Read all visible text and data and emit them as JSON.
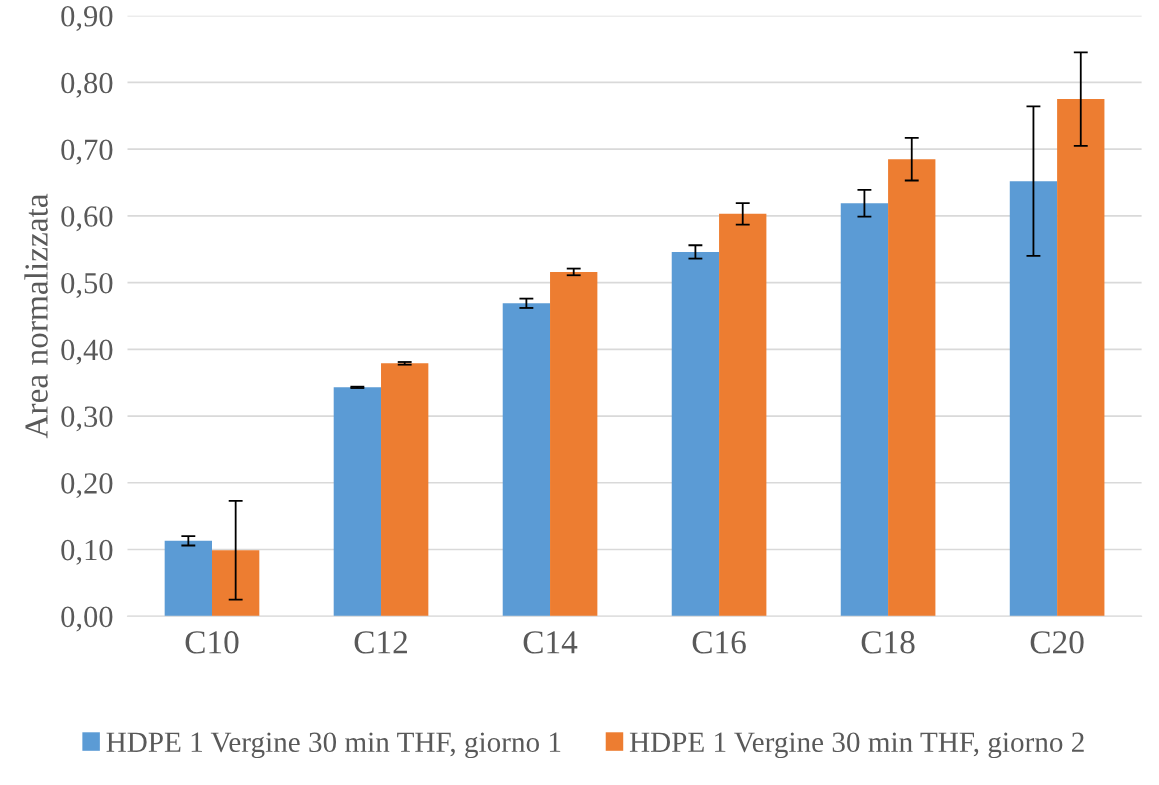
{
  "chart_data": {
    "type": "bar",
    "ylabel": "Area normalizzata",
    "categories": [
      "C10",
      "C12",
      "C14",
      "C16",
      "C18",
      "C20"
    ],
    "series": [
      {
        "name": "HDPE 1 Vergine 30 min THF, giorno 1",
        "color": "#5b9bd5",
        "values": [
          0.113,
          0.343,
          0.469,
          0.546,
          0.619,
          0.652
        ],
        "errors": [
          0.007,
          0.001,
          0.007,
          0.01,
          0.02,
          0.112
        ]
      },
      {
        "name": "HDPE 1 Vergine 30 min THF, giorno 2",
        "color": "#ed7d31",
        "values": [
          0.099,
          0.379,
          0.516,
          0.603,
          0.685,
          0.775
        ],
        "errors": [
          0.074,
          0.002,
          0.005,
          0.016,
          0.032,
          0.07
        ]
      }
    ],
    "ylim": [
      0,
      0.9
    ],
    "yticks": [
      {
        "value": 0,
        "label": "0,00"
      },
      {
        "value": 0.1,
        "label": "0,10"
      },
      {
        "value": 0.2,
        "label": "0,20"
      },
      {
        "value": 0.3,
        "label": "0,30"
      },
      {
        "value": 0.4,
        "label": "0,40"
      },
      {
        "value": 0.5,
        "label": "0,50"
      },
      {
        "value": 0.6,
        "label": "0,60"
      },
      {
        "value": 0.7,
        "label": "0,70"
      },
      {
        "value": 0.8,
        "label": "0,80"
      },
      {
        "value": 0.9,
        "label": "0,90"
      }
    ],
    "grid": "y",
    "legend": "bottom"
  }
}
